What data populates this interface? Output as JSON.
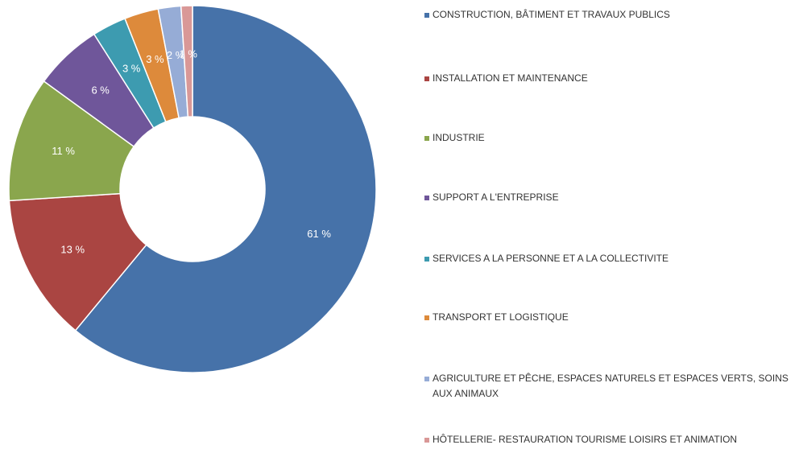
{
  "chart_data": {
    "type": "pie",
    "categories": [
      "CONSTRUCTION, BÂTIMENT ET TRAVAUX PUBLICS",
      "INSTALLATION ET MAINTENANCE",
      "INDUSTRIE",
      "SUPPORT A L'ENTREPRISE",
      "SERVICES A LA PERSONNE ET A LA COLLECTIVITE",
      "TRANSPORT ET LOGISTIQUE",
      "AGRICULTURE ET PÊCHE, ESPACES NATURELS ET ESPACES VERTS, SOINS AUX ANIMAUX",
      "HÔTELLERIE- RESTAURATION TOURISME LOISIRS ET ANIMATION"
    ],
    "values": [
      61,
      13,
      11,
      6,
      3,
      3,
      2,
      1
    ],
    "value_labels": [
      "61 %",
      "13 %",
      "11 %",
      "6 %",
      "3 %",
      "3 %",
      "2 %",
      "1 %"
    ],
    "colors": [
      "#4672a9",
      "#aa4542",
      "#8aa64d",
      "#6f569a",
      "#3d9bb0",
      "#dd8a3b",
      "#96acd6",
      "#d99897"
    ],
    "legend": "right"
  }
}
